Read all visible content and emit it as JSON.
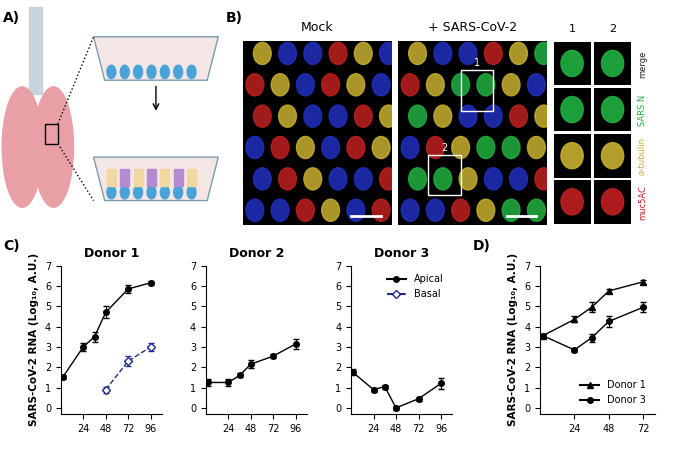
{
  "panel_labels": [
    "A)",
    "B)",
    "C)",
    "D)"
  ],
  "image_panel": {
    "conditions": [
      "Mock",
      "+ SARS-CoV-2"
    ],
    "insets": [
      "1",
      "2"
    ],
    "channels": [
      "merge",
      "SARS N",
      "α-tubulin",
      "muc5AC"
    ]
  },
  "chart_data": [
    {
      "type": "line",
      "panel": "C)",
      "title": "Donor 1",
      "y_label": "SARS-CoV-2 RNA (Log₁₀, A.U.)",
      "xlim": [
        0,
        108
      ],
      "xticks": [
        24,
        48,
        72,
        96
      ],
      "ylim": [
        -0.3,
        7
      ],
      "yticks": [
        0,
        1,
        2,
        3,
        4,
        5,
        6,
        7
      ],
      "series": [
        {
          "name": "Apical",
          "color": "#000000",
          "marker": "circle",
          "line_style": "solid",
          "x": [
            2,
            24,
            36,
            48,
            72,
            96
          ],
          "values": [
            1.5,
            3.0,
            3.5,
            4.7,
            5.85,
            6.15
          ],
          "errors": [
            0.1,
            0.2,
            0.25,
            0.3,
            0.2,
            0.1
          ]
        },
        {
          "name": "Basal",
          "color": "#1f2a8c",
          "marker": "open_diamond",
          "line_style": "dashed",
          "x": [
            48,
            72,
            96
          ],
          "values": [
            0.9,
            2.3,
            3.0
          ],
          "errors": [
            0.15,
            0.25,
            0.2
          ]
        }
      ]
    },
    {
      "type": "line",
      "panel": "C)",
      "title": "Donor 2",
      "xlim": [
        0,
        108
      ],
      "xticks": [
        24,
        48,
        72,
        96
      ],
      "ylim": [
        -0.3,
        7
      ],
      "yticks": [
        0,
        1,
        2,
        3,
        4,
        5,
        6,
        7
      ],
      "series": [
        {
          "name": "Apical",
          "color": "#000000",
          "marker": "circle",
          "line_style": "solid",
          "x": [
            2,
            24,
            36,
            48,
            72,
            96
          ],
          "values": [
            1.25,
            1.25,
            1.6,
            2.15,
            2.55,
            3.15
          ],
          "errors": [
            0.15,
            0.15,
            0.1,
            0.2,
            0.1,
            0.25
          ]
        }
      ]
    },
    {
      "type": "line",
      "panel": "C)",
      "title": "Donor 3",
      "legend": "upper right",
      "xlim": [
        0,
        108
      ],
      "xticks": [
        24,
        48,
        72,
        96
      ],
      "ylim": [
        -0.3,
        7
      ],
      "yticks": [
        0,
        1,
        2,
        3,
        4,
        5,
        6,
        7
      ],
      "series": [
        {
          "name": "Apical",
          "color": "#000000",
          "marker": "circle",
          "line_style": "solid",
          "x": [
            2,
            24,
            36,
            48,
            72,
            96
          ],
          "values": [
            1.75,
            0.9,
            1.05,
            0.0,
            0.45,
            1.2
          ],
          "errors": [
            0.15,
            0.1,
            0.1,
            0.1,
            0.1,
            0.25
          ]
        }
      ]
    },
    {
      "type": "line",
      "panel": "D)",
      "y_label": "SARS-CoV-2 RNA (Log₁₀, A.U.)",
      "legend": "lower right",
      "xlim": [
        0,
        80
      ],
      "xticks": [
        24,
        48,
        72
      ],
      "ylim": [
        -0.3,
        7
      ],
      "yticks": [
        0,
        1,
        2,
        3,
        4,
        5,
        6,
        7
      ],
      "series": [
        {
          "name": "Donor 1",
          "color": "#000000",
          "marker": "triangle",
          "line_style": "solid",
          "x": [
            2,
            24,
            36,
            48,
            72
          ],
          "values": [
            3.55,
            4.35,
            4.95,
            5.75,
            6.2
          ],
          "errors": [
            0.1,
            0.15,
            0.25,
            0.1,
            0.1
          ]
        },
        {
          "name": "Donor 3",
          "color": "#000000",
          "marker": "circle",
          "line_style": "solid",
          "x": [
            2,
            24,
            36,
            48,
            72
          ],
          "values": [
            3.55,
            2.85,
            3.45,
            4.25,
            4.95
          ],
          "errors": [
            0.1,
            0.1,
            0.2,
            0.25,
            0.25
          ]
        }
      ]
    }
  ]
}
